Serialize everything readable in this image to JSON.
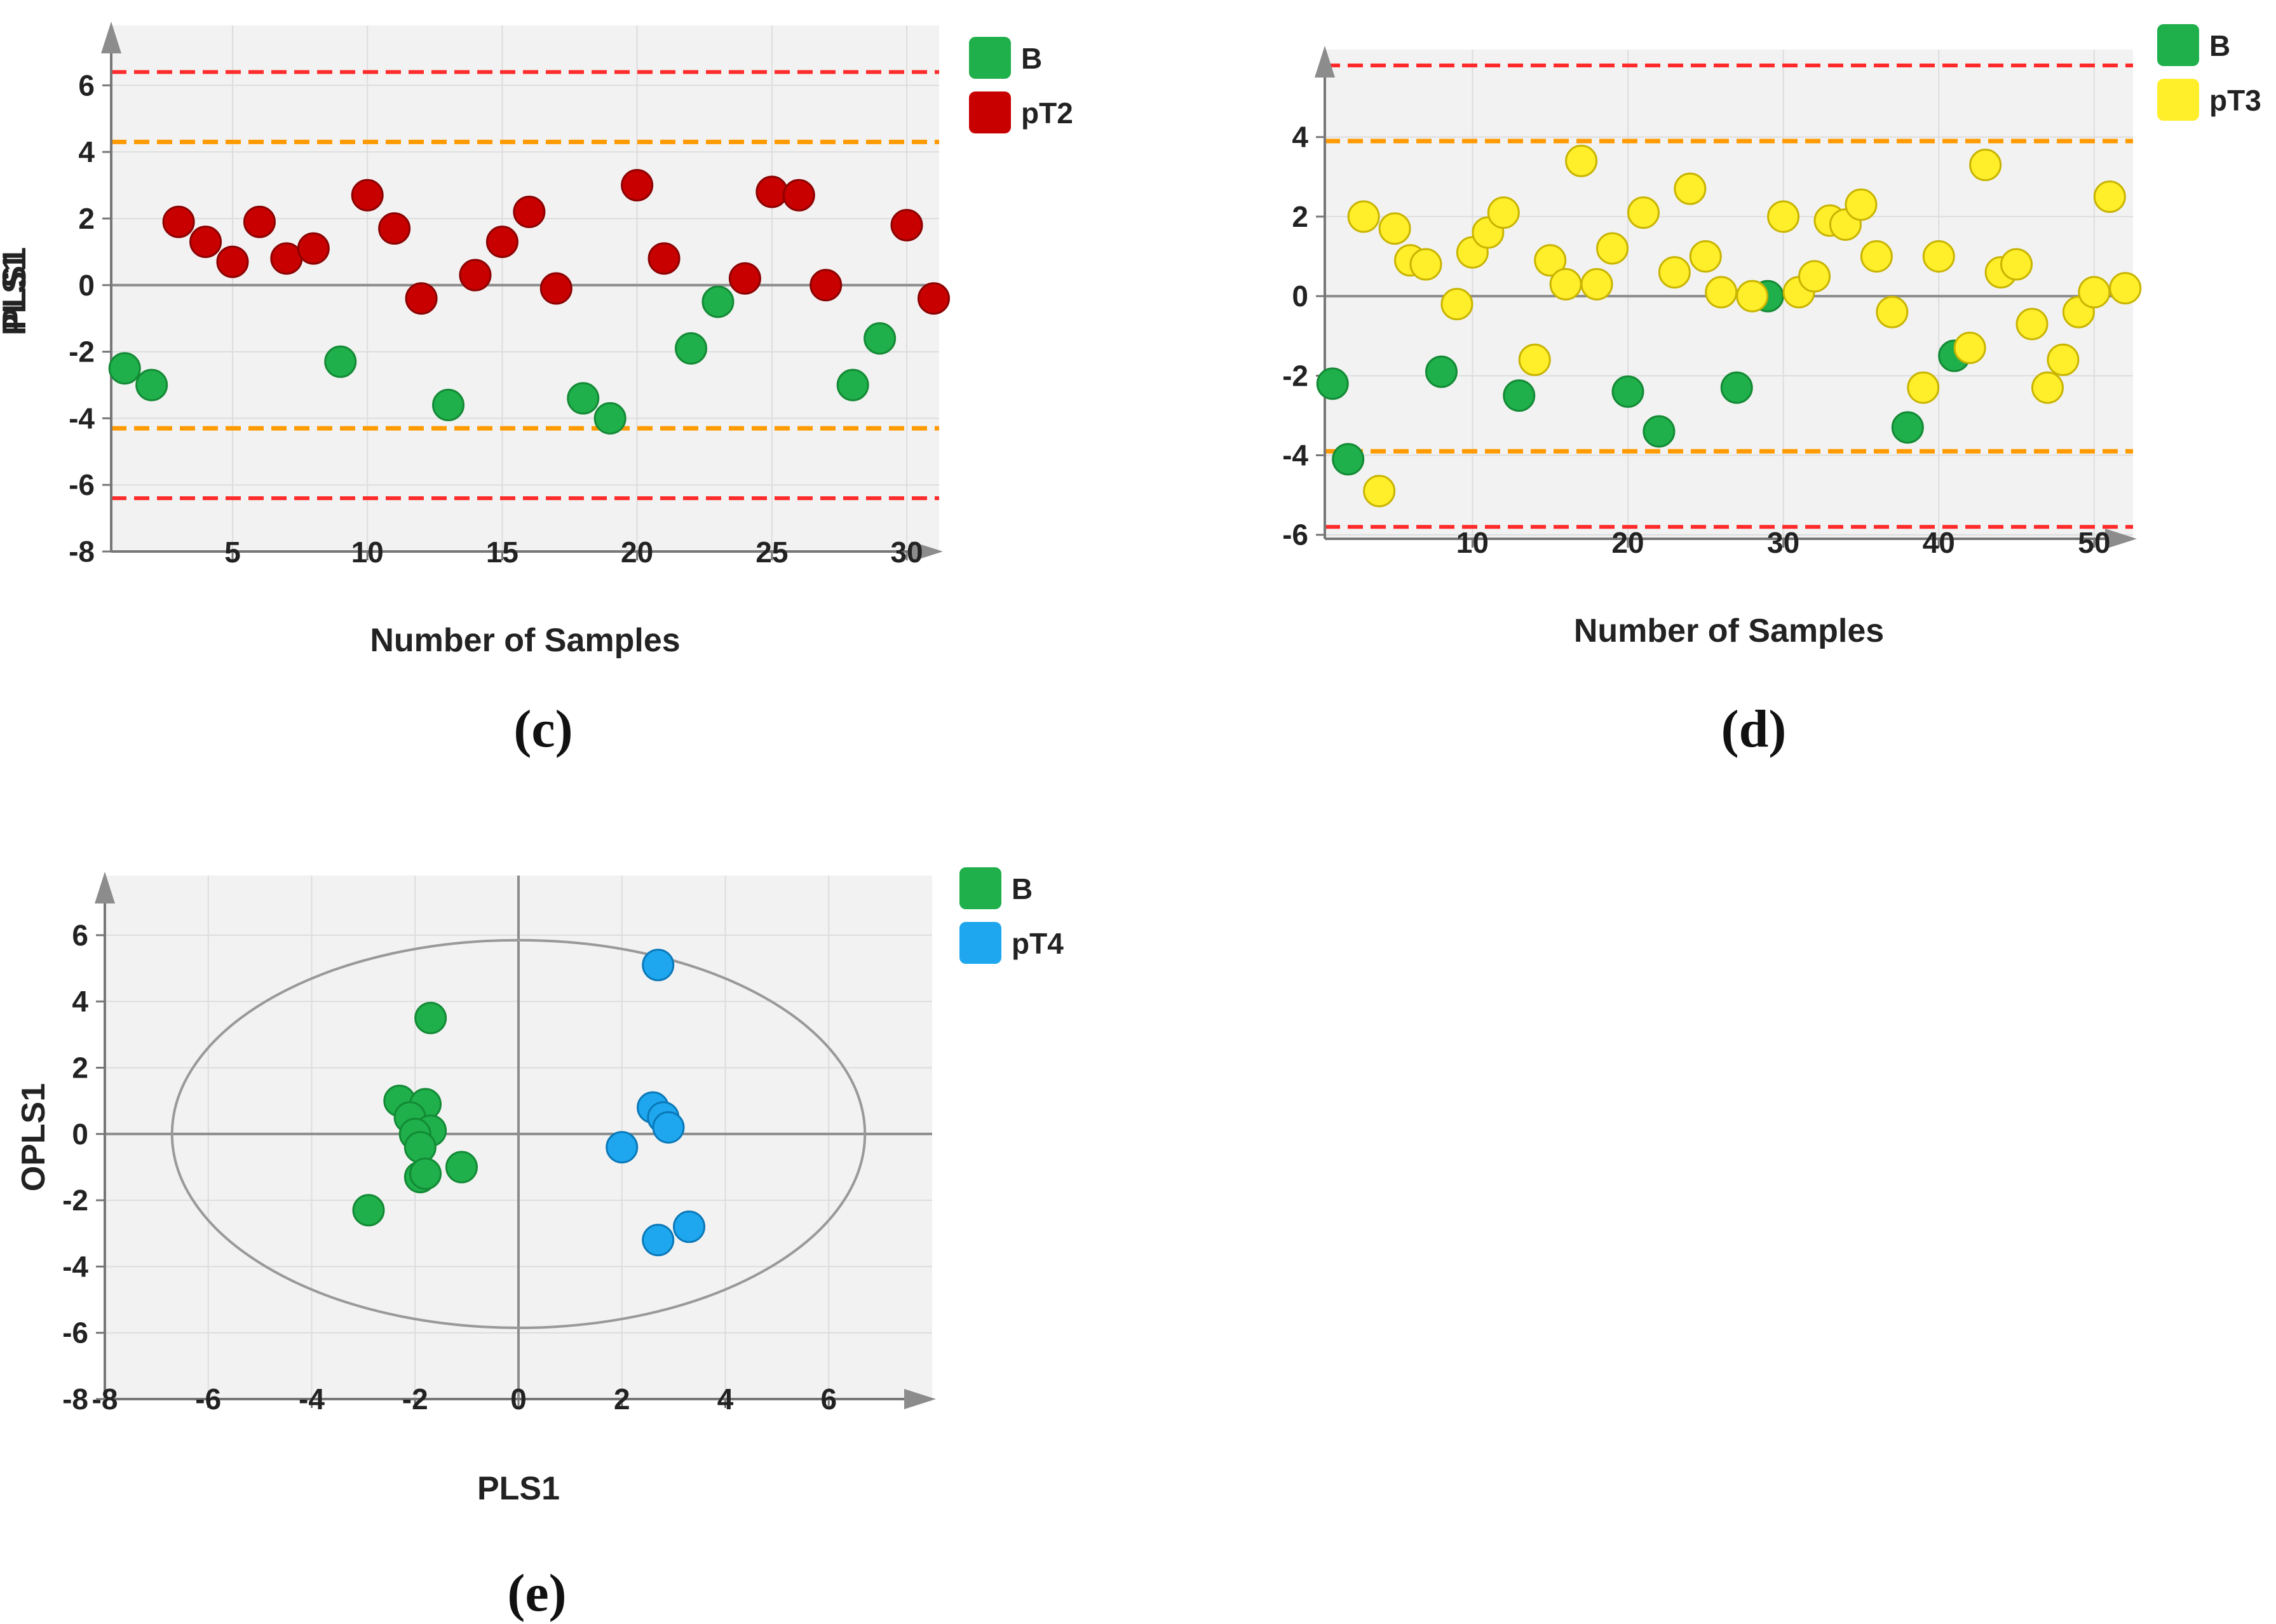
{
  "colors": {
    "green": "#1faf4b",
    "green_edge": "#138a35",
    "red": "#c80000",
    "red_edge": "#8c0000",
    "yellow": "#ffee2a",
    "yellow_edge": "#c8b400",
    "blue": "#1ea7ee",
    "blue_edge": "#0a78b8",
    "plot_bg": "#f2f2f2",
    "grid": "#dddddd",
    "zero_line": "#8c8c8c",
    "axis": "#777777",
    "limit_orange": "#ff9a00",
    "limit_red": "#ff2a2a"
  },
  "chart_data": [
    {
      "id": "c",
      "panel_label": "(c)",
      "type": "scatter",
      "xlabel": "Number of Samples",
      "ylabel": "PLS1",
      "xlim": [
        0.5,
        31.2
      ],
      "ylim": [
        -8,
        7.8
      ],
      "xticks": [
        5,
        10,
        15,
        20,
        25,
        30
      ],
      "yticks": [
        -8,
        -6,
        -4,
        -2,
        0,
        2,
        4,
        6
      ],
      "limits": {
        "orange": [
          4.3,
          -4.3
        ],
        "red": [
          6.4,
          -6.4
        ]
      },
      "legend": [
        {
          "name": "B",
          "color": "green"
        },
        {
          "name": "pT2",
          "color": "red"
        }
      ],
      "series": [
        {
          "name": "B",
          "color": "green",
          "points": [
            [
              1,
              -2.5
            ],
            [
              2,
              -3
            ],
            [
              9,
              -2.3
            ],
            [
              13,
              -3.6
            ],
            [
              18,
              -3.4
            ],
            [
              19,
              -4
            ],
            [
              22,
              -1.9
            ],
            [
              23,
              -0.5
            ],
            [
              28,
              -3
            ],
            [
              29,
              -1.6
            ]
          ]
        },
        {
          "name": "pT2",
          "color": "red",
          "points": [
            [
              3,
              1.9
            ],
            [
              4,
              1.3
            ],
            [
              5,
              0.7
            ],
            [
              6,
              1.9
            ],
            [
              7,
              0.8
            ],
            [
              8,
              1.1
            ],
            [
              10,
              2.7
            ],
            [
              11,
              1.7
            ],
            [
              12,
              -0.4
            ],
            [
              14,
              0.3
            ],
            [
              15,
              1.3
            ],
            [
              16,
              2.2
            ],
            [
              17,
              -0.1
            ],
            [
              20,
              3
            ],
            [
              21,
              0.8
            ],
            [
              24,
              0.2
            ],
            [
              25,
              2.8
            ],
            [
              26,
              2.7
            ],
            [
              27,
              0
            ],
            [
              30,
              1.8
            ],
            [
              31,
              -0.4
            ]
          ]
        }
      ]
    },
    {
      "id": "d",
      "panel_label": "(d)",
      "type": "scatter",
      "xlabel": "Number of Samples",
      "ylabel": "PLS1",
      "xlim": [
        0.5,
        52.5
      ],
      "ylim": [
        -6.1,
        6.2
      ],
      "xticks": [
        10,
        20,
        30,
        40,
        50
      ],
      "yticks": [
        -6,
        -4,
        -2,
        0,
        2,
        4
      ],
      "limits": {
        "orange": [
          3.9,
          -3.9
        ],
        "red": [
          5.8,
          -5.8
        ]
      },
      "legend": [
        {
          "name": "B",
          "color": "green"
        },
        {
          "name": "pT3",
          "color": "yellow"
        }
      ],
      "series": [
        {
          "name": "B",
          "color": "green",
          "points": [
            [
              1,
              -2.2
            ],
            [
              2,
              -4.1
            ],
            [
              8,
              -1.9
            ],
            [
              13,
              -2.5
            ],
            [
              20,
              -2.4
            ],
            [
              22,
              -3.4
            ],
            [
              27,
              -2.3
            ],
            [
              29,
              0
            ],
            [
              38,
              -3.3
            ],
            [
              41,
              -1.5
            ]
          ]
        },
        {
          "name": "pT3",
          "color": "yellow",
          "points": [
            [
              3,
              2
            ],
            [
              4,
              -4.9
            ],
            [
              5,
              1.7
            ],
            [
              6,
              0.9
            ],
            [
              7,
              0.8
            ],
            [
              9,
              -0.2
            ],
            [
              10,
              1.1
            ],
            [
              11,
              1.6
            ],
            [
              12,
              2.1
            ],
            [
              14,
              -1.6
            ],
            [
              15,
              0.9
            ],
            [
              16,
              0.3
            ],
            [
              17,
              3.4
            ],
            [
              18,
              0.3
            ],
            [
              19,
              1.2
            ],
            [
              21,
              2.1
            ],
            [
              23,
              0.6
            ],
            [
              24,
              2.7
            ],
            [
              25,
              1
            ],
            [
              26,
              0.1
            ],
            [
              28,
              0
            ],
            [
              30,
              2
            ],
            [
              31,
              0.1
            ],
            [
              32,
              0.5
            ],
            [
              33,
              1.9
            ],
            [
              34,
              1.8
            ],
            [
              35,
              2.3
            ],
            [
              36,
              1
            ],
            [
              37,
              -0.4
            ],
            [
              39,
              -2.3
            ],
            [
              40,
              1
            ],
            [
              42,
              -1.3
            ],
            [
              43,
              3.3
            ],
            [
              44,
              0.6
            ],
            [
              45,
              0.8
            ],
            [
              46,
              -0.7
            ],
            [
              47,
              -2.3
            ],
            [
              48,
              -1.6
            ],
            [
              49,
              -0.4
            ],
            [
              50,
              0.1
            ],
            [
              51,
              2.5
            ],
            [
              52,
              0.2
            ]
          ]
        }
      ]
    },
    {
      "id": "e",
      "panel_label": "(e)",
      "type": "scatter",
      "xlabel": "PLS1",
      "ylabel": "OPLS1",
      "xlim": [
        -8,
        8
      ],
      "ylim": [
        -8,
        7.8
      ],
      "xticks": [
        -8,
        -6,
        -4,
        -2,
        0,
        2,
        4,
        6
      ],
      "yticks": [
        -8,
        -6,
        -4,
        -2,
        0,
        2,
        4,
        6
      ],
      "ellipse": {
        "rx": 6.7,
        "ry": 5.85
      },
      "legend": [
        {
          "name": "B",
          "color": "green"
        },
        {
          "name": "pT4",
          "color": "blue"
        }
      ],
      "series": [
        {
          "name": "B",
          "color": "green",
          "points": [
            [
              -1.7,
              3.5
            ],
            [
              -2.3,
              1
            ],
            [
              -1.8,
              0.9
            ],
            [
              -2.1,
              0.5
            ],
            [
              -1.7,
              0.1
            ],
            [
              -2,
              0
            ],
            [
              -1.9,
              -0.4
            ],
            [
              -1.1,
              -1
            ],
            [
              -1.9,
              -1.3
            ],
            [
              -1.8,
              -1.2
            ],
            [
              -2.9,
              -2.3
            ]
          ]
        },
        {
          "name": "pT4",
          "color": "blue",
          "points": [
            [
              2.7,
              5.1
            ],
            [
              2.6,
              0.8
            ],
            [
              2.8,
              0.5
            ],
            [
              2.9,
              0.2
            ],
            [
              2,
              -0.4
            ],
            [
              3.3,
              -2.8
            ],
            [
              2.7,
              -3.2
            ]
          ]
        }
      ]
    }
  ]
}
